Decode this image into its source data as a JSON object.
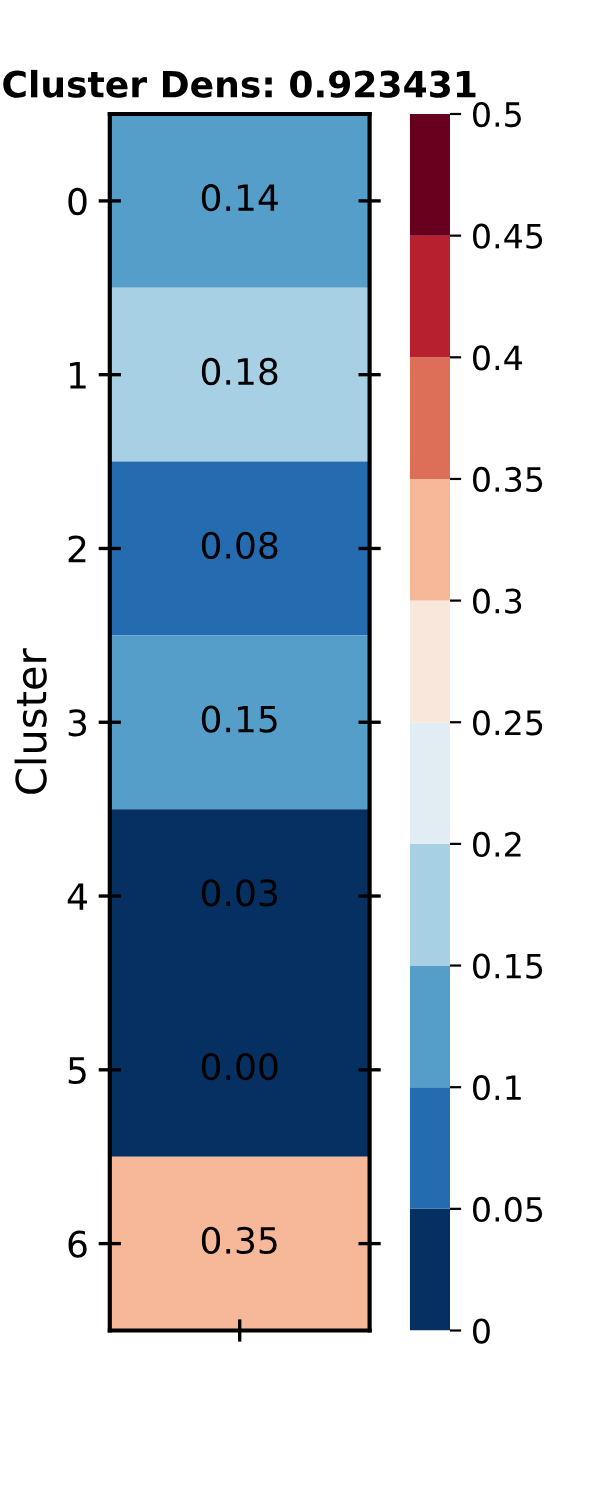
{
  "chart_data": {
    "type": "heatmap",
    "title": "Cluster Dens: 0.923431",
    "ylabel": "Cluster",
    "categories": [
      null
    ],
    "y_categories": [
      "0",
      "1",
      "2",
      "3",
      "4",
      "5",
      "6"
    ],
    "cells": [
      [
        0.14
      ],
      [
        0.18
      ],
      [
        0.08
      ],
      [
        0.15
      ],
      [
        0.03
      ],
      [
        0.0
      ],
      [
        0.35
      ]
    ],
    "cell_labels": [
      [
        "0.14"
      ],
      [
        "0.18"
      ],
      [
        "0.08"
      ],
      [
        "0.15"
      ],
      [
        "0.03"
      ],
      [
        "0.00"
      ],
      [
        "0.35"
      ]
    ],
    "clim": [
      0,
      0.5
    ],
    "cticks": [
      0,
      0.05,
      0.1,
      0.15,
      0.2,
      0.25,
      0.3,
      0.35,
      0.4,
      0.45,
      0.5
    ]
  }
}
